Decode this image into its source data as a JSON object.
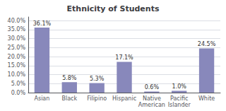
{
  "chart_data": {
    "type": "bar",
    "title": "Ethnicity of Students",
    "categories": [
      "Asian",
      "Black",
      "Filipino",
      "Hispanic",
      "Native\nAmerican",
      "Pacific\nIslander",
      "White"
    ],
    "values": [
      36.1,
      5.8,
      5.3,
      17.1,
      0.6,
      1.0,
      24.5
    ],
    "value_labels": [
      "36.1%",
      "5.8%",
      "5.3%",
      "17.1%",
      "0.6%",
      "1.0%",
      "24.5%"
    ],
    "color": "#8888bb",
    "ylim": [
      0,
      42
    ],
    "yticks": [
      {
        "value": 0.0,
        "label": "0.0%"
      },
      {
        "value": 5.0,
        "label": "5.0%"
      },
      {
        "value": 10.0,
        "label": "10.0%"
      },
      {
        "value": 15.0,
        "label": "15.0%"
      },
      {
        "value": 20.0,
        "label": "20.0%"
      },
      {
        "value": 25.0,
        "label": "25.0%"
      },
      {
        "value": 30.0,
        "label": "30.0%"
      },
      {
        "value": 35.0,
        "label": "35.0%"
      },
      {
        "value": 40.0,
        "label": "40.0%"
      }
    ],
    "grid": true,
    "data_labels": true
  }
}
